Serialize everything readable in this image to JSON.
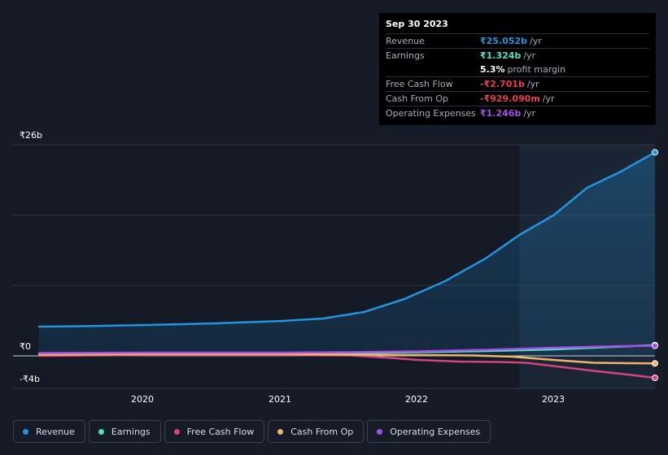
{
  "chart_data": {
    "type": "area",
    "title": "",
    "xlabel": "",
    "ylabel": "",
    "ylim": [
      -4,
      26
    ],
    "y_tick_labels": [
      "₹26b",
      "₹0",
      "-₹4b"
    ],
    "x_tick_labels": [
      "2020",
      "2021",
      "2022",
      "2023"
    ],
    "x_tick_values": [
      2020.0,
      2021.0,
      2022.0,
      2023.0
    ],
    "xlim": [
      2019.2,
      2023.75
    ],
    "highlight_from": 2022.75,
    "series": [
      {
        "name": "Revenue",
        "color": "#2394df",
        "fill": true,
        "x": [
          2019.2,
          2019.5,
          2020.0,
          2020.5,
          2021.0,
          2021.3,
          2021.6,
          2021.9,
          2022.2,
          2022.5,
          2022.75,
          2023.0,
          2023.25,
          2023.5,
          2023.75
        ],
        "y": [
          3.6,
          3.65,
          3.8,
          4.0,
          4.3,
          4.6,
          5.4,
          7.0,
          9.2,
          12.0,
          14.9,
          17.3,
          20.7,
          22.7,
          25.052
        ]
      },
      {
        "name": "Earnings",
        "color": "#58e1c1",
        "fill": false,
        "x": [
          2019.2,
          2020.0,
          2021.0,
          2021.5,
          2022.0,
          2022.5,
          2023.0,
          2023.5,
          2023.75
        ],
        "y": [
          0.25,
          0.3,
          0.3,
          0.35,
          0.45,
          0.6,
          0.8,
          1.15,
          1.324
        ]
      },
      {
        "name": "Free Cash Flow",
        "color": "#d1467f",
        "fill": false,
        "x": [
          2019.2,
          2020.0,
          2021.0,
          2021.5,
          2021.8,
          2022.0,
          2022.3,
          2022.6,
          2022.8,
          2023.0,
          2023.3,
          2023.55,
          2023.75
        ],
        "y": [
          0.0,
          0.1,
          0.1,
          0.05,
          -0.25,
          -0.5,
          -0.7,
          -0.75,
          -0.85,
          -1.25,
          -1.85,
          -2.3,
          -2.701
        ]
      },
      {
        "name": "Cash From Op",
        "color": "#f0b46f",
        "fill": false,
        "x": [
          2019.2,
          2020.0,
          2021.0,
          2021.5,
          2022.0,
          2022.4,
          2022.7,
          2023.0,
          2023.3,
          2023.75
        ],
        "y": [
          0.15,
          0.2,
          0.2,
          0.15,
          0.1,
          0.05,
          -0.1,
          -0.5,
          -0.85,
          -0.929
        ]
      },
      {
        "name": "Operating Expenses",
        "color": "#a54fea",
        "fill": false,
        "x": [
          2019.2,
          2020.0,
          2021.0,
          2021.5,
          2022.0,
          2022.5,
          2023.0,
          2023.5,
          2023.75
        ],
        "y": [
          0.35,
          0.4,
          0.4,
          0.45,
          0.55,
          0.75,
          1.0,
          1.2,
          1.246
        ]
      }
    ]
  },
  "tooltip": {
    "date": "Sep 30 2023",
    "rows": [
      {
        "label": "Revenue",
        "value": "₹25.052b",
        "unit": "/yr",
        "color": "#2394df"
      },
      {
        "label": "Earnings",
        "value": "₹1.324b",
        "unit": "/yr",
        "color": "#58e1c1"
      },
      {
        "label": "",
        "value": "5.3%",
        "unit": "profit margin",
        "color": "#ffffff"
      },
      {
        "label": "Free Cash Flow",
        "value": "-₹2.701b",
        "unit": "/yr",
        "color": "#e8414d"
      },
      {
        "label": "Cash From Op",
        "value": "-₹929.090m",
        "unit": "/yr",
        "color": "#e8414d"
      },
      {
        "label": "Operating Expenses",
        "value": "₹1.246b",
        "unit": "/yr",
        "color": "#a54fea"
      }
    ]
  },
  "legend": [
    {
      "label": "Revenue",
      "color": "#2394df"
    },
    {
      "label": "Earnings",
      "color": "#58e1c1"
    },
    {
      "label": "Free Cash Flow",
      "color": "#d1467f"
    },
    {
      "label": "Cash From Op",
      "color": "#f0b46f"
    },
    {
      "label": "Operating Expenses",
      "color": "#a54fea"
    }
  ]
}
